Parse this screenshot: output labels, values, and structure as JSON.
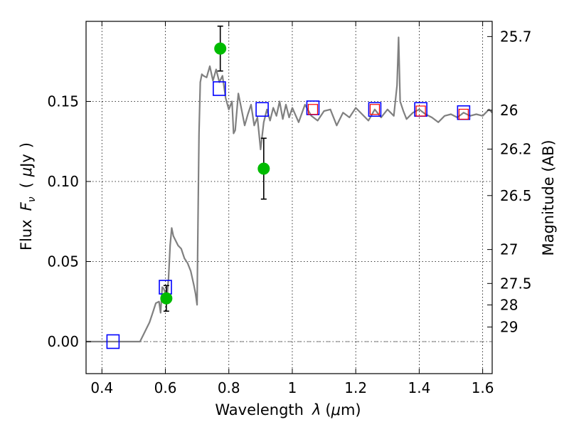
{
  "chart_data": {
    "type": "line",
    "xlabel": "Wavelength  λ (μm)",
    "ylabel": "Flux  F_ν  ( μJy )",
    "ylabel_parts": {
      "lead": "Flux",
      "sym": "F",
      "sub": "ν",
      "unit_open": "(",
      "unit_mu": "μ",
      "unit_rest": "Jy",
      "unit_close": ")"
    },
    "xlabel_parts": {
      "lead": "Wavelength",
      "sym": "λ",
      "open": "(",
      "mu": "μ",
      "rest": "m)"
    },
    "y2label": "Magnitude (AB)",
    "xlim": [
      0.35,
      1.63
    ],
    "ylim": [
      -0.02,
      0.2
    ],
    "grid": true,
    "x_ticks": [
      {
        "value": 0.4,
        "label": "0.4"
      },
      {
        "value": 0.6,
        "label": "0.6"
      },
      {
        "value": 0.8,
        "label": "0.8"
      },
      {
        "value": 1.0,
        "label": "1"
      },
      {
        "value": 1.2,
        "label": "1.2"
      },
      {
        "value": 1.4,
        "label": "1.4"
      },
      {
        "value": 1.6,
        "label": "1.6"
      }
    ],
    "y_ticks": [
      {
        "value": 0.0,
        "label": "0.00"
      },
      {
        "value": 0.05,
        "label": "0.05"
      },
      {
        "value": 0.1,
        "label": "0.10"
      },
      {
        "value": 0.15,
        "label": "0.15"
      }
    ],
    "y2_ticks": [
      {
        "flux": 0.1905,
        "label": "25.7"
      },
      {
        "flux": 0.1445,
        "label": "26"
      },
      {
        "flux": 0.1202,
        "label": "26.2"
      },
      {
        "flux": 0.0912,
        "label": "26.5"
      },
      {
        "flux": 0.0575,
        "label": "27"
      },
      {
        "flux": 0.0363,
        "label": "27.5"
      },
      {
        "flux": 0.0229,
        "label": "28"
      },
      {
        "flux": 0.0091,
        "label": "29"
      }
    ],
    "series": [
      {
        "style": "spectrum-line",
        "color": "#808080",
        "x": [
          0.35,
          0.4,
          0.52,
          0.53,
          0.55,
          0.56,
          0.57,
          0.58,
          0.585,
          0.59,
          0.595,
          0.6,
          0.605,
          0.61,
          0.615,
          0.62,
          0.625,
          0.63,
          0.64,
          0.65,
          0.66,
          0.67,
          0.68,
          0.69,
          0.695,
          0.7,
          0.703,
          0.706,
          0.71,
          0.715,
          0.72,
          0.73,
          0.74,
          0.75,
          0.76,
          0.77,
          0.78,
          0.79,
          0.8,
          0.81,
          0.815,
          0.82,
          0.83,
          0.84,
          0.85,
          0.86,
          0.87,
          0.88,
          0.89,
          0.9,
          0.91,
          0.92,
          0.93,
          0.94,
          0.95,
          0.96,
          0.97,
          0.98,
          0.99,
          1.0,
          1.02,
          1.04,
          1.06,
          1.08,
          1.1,
          1.12,
          1.14,
          1.16,
          1.18,
          1.2,
          1.22,
          1.24,
          1.26,
          1.28,
          1.3,
          1.32,
          1.33,
          1.335,
          1.34,
          1.35,
          1.36,
          1.38,
          1.4,
          1.42,
          1.44,
          1.46,
          1.48,
          1.5,
          1.52,
          1.54,
          1.56,
          1.58,
          1.6,
          1.62,
          1.63
        ],
        "y": [
          0.0,
          0.0,
          0.0,
          0.004,
          0.012,
          0.018,
          0.024,
          0.025,
          0.018,
          0.034,
          0.033,
          0.03,
          0.028,
          0.04,
          0.06,
          0.071,
          0.066,
          0.064,
          0.06,
          0.058,
          0.052,
          0.049,
          0.044,
          0.035,
          0.03,
          0.023,
          0.08,
          0.13,
          0.162,
          0.167,
          0.166,
          0.165,
          0.172,
          0.163,
          0.17,
          0.162,
          0.166,
          0.152,
          0.145,
          0.15,
          0.13,
          0.132,
          0.155,
          0.145,
          0.135,
          0.142,
          0.148,
          0.135,
          0.14,
          0.12,
          0.137,
          0.145,
          0.138,
          0.146,
          0.141,
          0.15,
          0.139,
          0.148,
          0.14,
          0.146,
          0.137,
          0.148,
          0.141,
          0.138,
          0.144,
          0.145,
          0.135,
          0.143,
          0.14,
          0.146,
          0.142,
          0.138,
          0.145,
          0.14,
          0.145,
          0.141,
          0.16,
          0.19,
          0.15,
          0.144,
          0.139,
          0.143,
          0.145,
          0.142,
          0.14,
          0.137,
          0.141,
          0.142,
          0.14,
          0.143,
          0.141,
          0.142,
          0.141,
          0.145,
          0.143
        ]
      },
      {
        "style": "blue-open-squares",
        "color": "#0000ff",
        "x": [
          0.435,
          0.6,
          0.77,
          0.905,
          1.065,
          1.26,
          1.405,
          1.54
        ],
        "y": [
          0.0,
          0.034,
          0.158,
          0.145,
          0.146,
          0.145,
          0.145,
          0.143
        ]
      },
      {
        "style": "red-open-squares",
        "color": "#ff0000",
        "x": [
          1.065,
          1.26,
          1.405,
          1.54
        ],
        "y": [
          0.145,
          0.145,
          0.144,
          0.142
        ]
      },
      {
        "style": "green-filled-circles-with-errorbars",
        "color": "#00bb00",
        "x": [
          0.603,
          0.773,
          0.91
        ],
        "y": [
          0.027,
          0.183,
          0.108
        ],
        "yerr": [
          0.008,
          0.014,
          0.019
        ]
      }
    ]
  }
}
